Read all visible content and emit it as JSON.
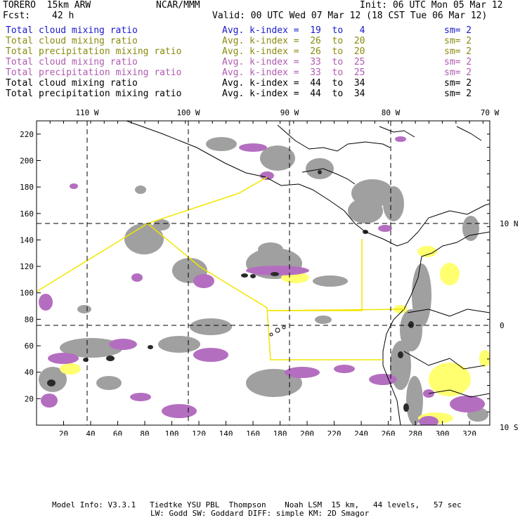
{
  "header": {
    "model": "TORERO  15km ARW",
    "center": "NCAR/MMM",
    "init": "Init: 06 UTC Mon 05 Mar 12",
    "fcst_label": "Fcst:",
    "fcst_value": "42 h",
    "valid": "Valid: 00 UTC Wed 07 Mar 12 (18 CST Tue 06 Mar 12)"
  },
  "legend": [
    {
      "field": "Total cloud mixing ratio",
      "index": "Avg. k-index =  19  to   4",
      "sm": "sm= 2",
      "color": "#1a1acc"
    },
    {
      "field": "Total cloud mixing ratio",
      "index": "Avg. k-index =  26  to  20",
      "sm": "sm= 2",
      "color": "#8a8a10"
    },
    {
      "field": "Total precipitation mixing ratio",
      "index": "Avg. k-index =  26  to  20",
      "sm": "sm= 2",
      "color": "#8a8a10"
    },
    {
      "field": "Total cloud mixing ratio",
      "index": "Avg. k-index =  33  to  25",
      "sm": "sm= 2",
      "color": "#b05ab0"
    },
    {
      "field": "Total precipitation mixing ratio",
      "index": "Avg. k-index =  33  to  25",
      "sm": "sm= 2",
      "color": "#b05ab0"
    },
    {
      "field": "Total cloud mixing ratio",
      "index": "Avg. k-index =  44  to  34",
      "sm": "sm= 2",
      "color": "#000000"
    },
    {
      "field": "Total precipitation mixing ratio",
      "index": "Avg. k-index =  44  to  34",
      "sm": "sm= 2",
      "color": "#000000"
    }
  ],
  "map": {
    "x_ticks": [
      "20",
      "40",
      "60",
      "80",
      "100",
      "120",
      "140",
      "160",
      "180",
      "200",
      "220",
      "240",
      "260",
      "280",
      "300",
      "320"
    ],
    "y_ticks": [
      "20",
      "40",
      "60",
      "80",
      "100",
      "120",
      "140",
      "160",
      "180",
      "200",
      "220"
    ],
    "lon_labels": [
      "110 W",
      "100 W",
      "90 W",
      "80 W",
      "70 W"
    ],
    "lat_labels": [
      "10 N",
      "0",
      "10 S"
    ],
    "colors": {
      "gray": "#9a9a9a",
      "purple": "#b46ec0",
      "yellow": "#ffff66",
      "dark": "#2a2a2a",
      "coast": "#000000",
      "boundary": "#f2e600"
    }
  },
  "footer": {
    "line1": "Model Info: V3.3.1   Tiedtke YSU PBL  Thompson    Noah LSM  15 km,   44 levels,   57 sec",
    "line2": "LW: Godd SW: Goddard DIFF: simple KM: 2D Smagor"
  }
}
